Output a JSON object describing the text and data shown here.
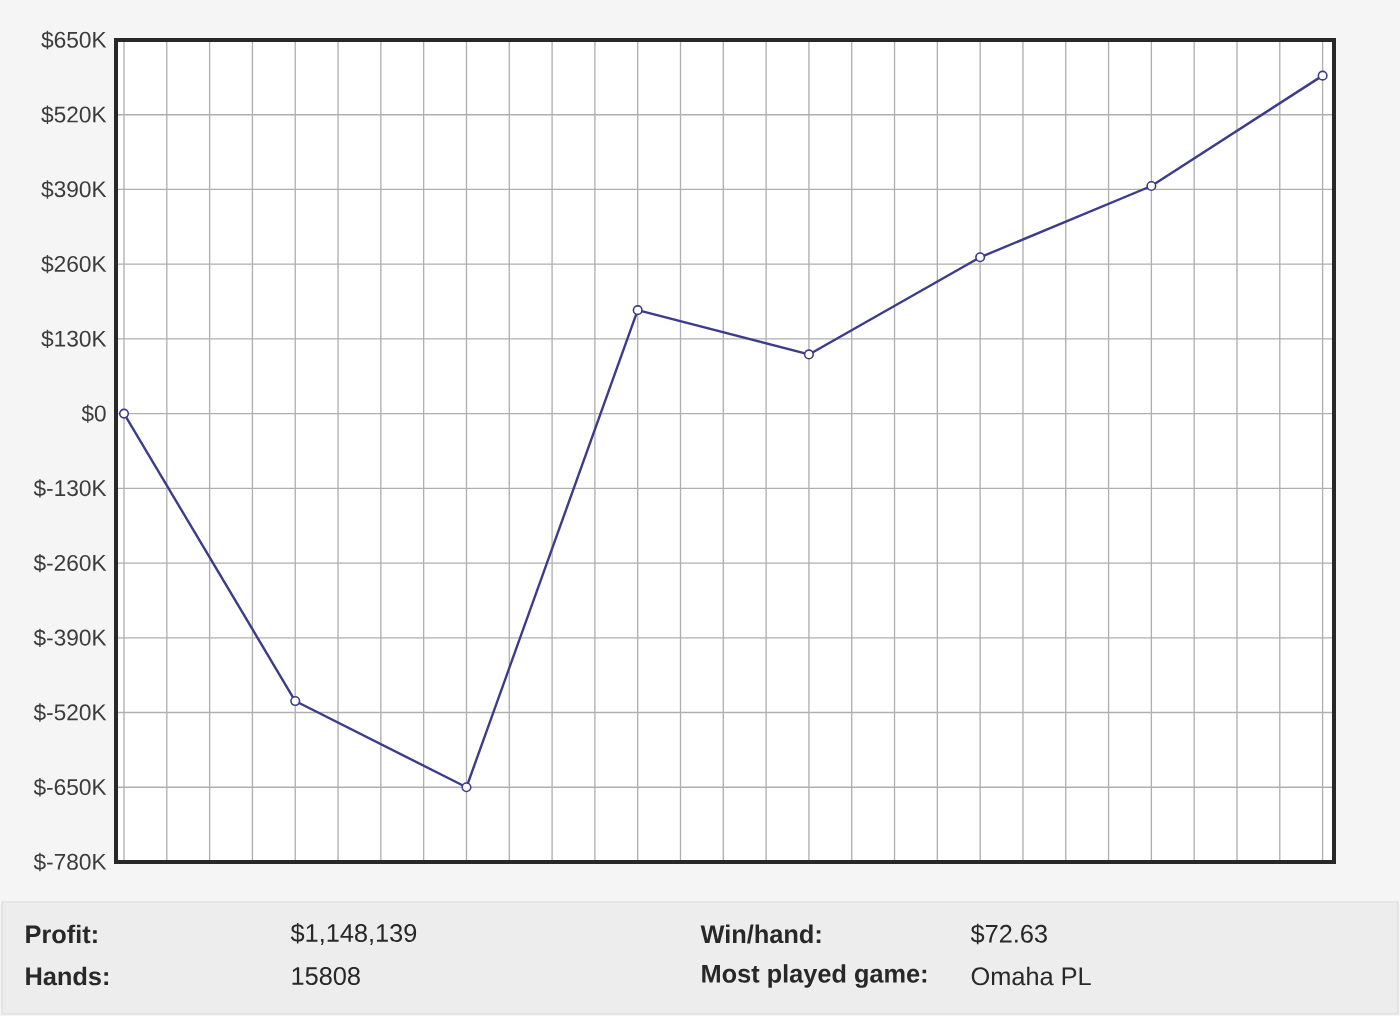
{
  "chart_data": {
    "type": "line",
    "categories": [
      null,
      null,
      null,
      null,
      null,
      null,
      null,
      null
    ],
    "series": [
      {
        "color": "#3c3c8c",
        "values": [
          0,
          -500000,
          -650000,
          180000,
          103000,
          272000,
          396000,
          588000
        ]
      }
    ],
    "ylim": [
      -780000,
      650000
    ],
    "yticks": [
      {
        "value": -780000,
        "label": "$-780K"
      },
      {
        "value": -650000,
        "label": "$-650K"
      },
      {
        "value": -520000,
        "label": "$-520K"
      },
      {
        "value": -390000,
        "label": "$-390K"
      },
      {
        "value": -260000,
        "label": "$-260K"
      },
      {
        "value": -130000,
        "label": "$-130K"
      },
      {
        "value": 0,
        "label": "$0"
      },
      {
        "value": 130000,
        "label": "$130K"
      },
      {
        "value": 260000,
        "label": "$260K"
      },
      {
        "value": 390000,
        "label": "$390K"
      },
      {
        "value": 520000,
        "label": "$520K"
      },
      {
        "value": 650000,
        "label": "$650K"
      }
    ],
    "grid": true,
    "marker": "circle",
    "line_style": "solid",
    "tick_labels": "y",
    "annotations": [
      "Profit:",
      "$1,148,139",
      "Win/hand:",
      "$72.63",
      "Hands:",
      "15808",
      "Most played game:",
      "Omaha PL"
    ]
  }
}
